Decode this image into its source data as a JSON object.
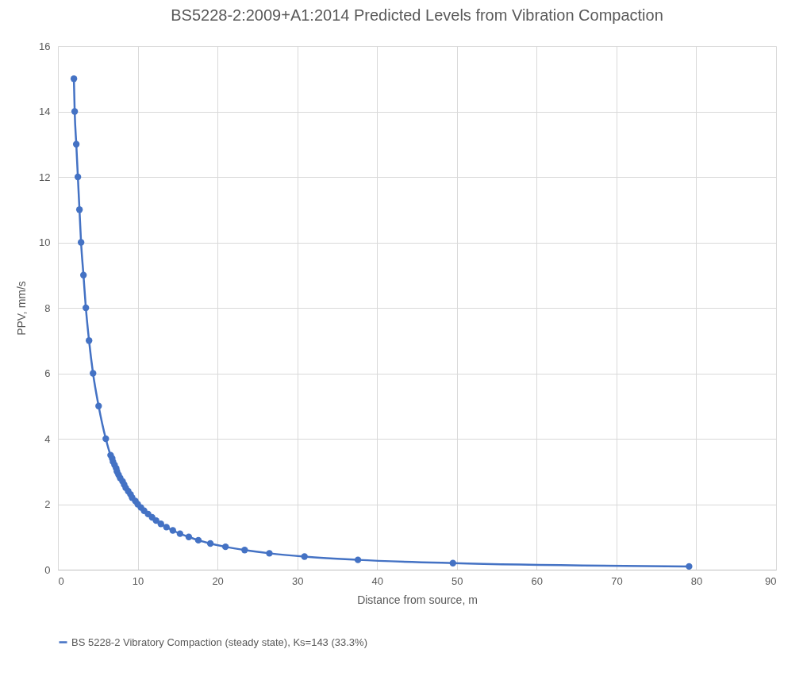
{
  "chart_data": {
    "type": "line",
    "title": "BS5228-2:2009+A1:2014 Predicted Levels from Vibration Compaction",
    "xlabel": "Distance from source, m",
    "ylabel": "PPV, mm/s",
    "x": [
      2.0,
      2.1,
      2.3,
      2.5,
      2.7,
      2.9,
      3.2,
      3.5,
      3.9,
      4.4,
      5.1,
      6.0,
      6.6,
      6.8,
      6.9,
      7.1,
      7.3,
      7.4,
      7.6,
      7.8,
      8.1,
      8.3,
      8.5,
      8.8,
      9.1,
      9.3,
      9.7,
      10.0,
      10.4,
      10.8,
      11.3,
      11.8,
      12.3,
      12.9,
      13.6,
      14.4,
      15.3,
      16.4,
      17.6,
      19.1,
      21.0,
      23.4,
      26.5,
      30.9,
      37.6,
      49.5,
      79.1
    ],
    "series": [
      {
        "name": "BS 5228-2 Vibratory Compaction (steady state), Ks=143 (33.3%)",
        "color": "#4472c4",
        "values": [
          15,
          14,
          13,
          12,
          11,
          10,
          9,
          8,
          7,
          6,
          5,
          4,
          3.5,
          3.4,
          3.3,
          3.2,
          3.1,
          3.0,
          2.9,
          2.8,
          2.7,
          2.6,
          2.5,
          2.4,
          2.3,
          2.2,
          2.1,
          2.0,
          1.9,
          1.8,
          1.7,
          1.6,
          1.5,
          1.4,
          1.3,
          1.2,
          1.1,
          1.0,
          0.9,
          0.8,
          0.7,
          0.6,
          0.5,
          0.4,
          0.3,
          0.2,
          0.1
        ]
      }
    ],
    "xlim": [
      0,
      90
    ],
    "xticks": [
      0,
      10,
      20,
      30,
      40,
      50,
      60,
      70,
      80,
      90
    ],
    "ylim": [
      0,
      16
    ],
    "yticks": [
      0,
      2,
      4,
      6,
      8,
      10,
      12,
      14,
      16
    ],
    "grid": true,
    "legend": "bottom",
    "marker": "circle",
    "line_style": "solid"
  }
}
